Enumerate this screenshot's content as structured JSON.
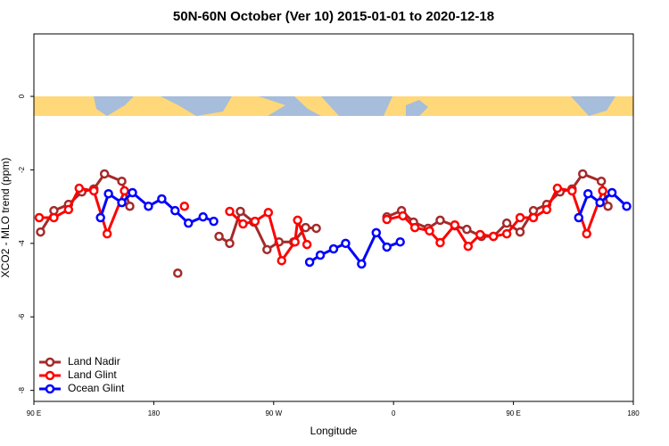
{
  "chart_data": {
    "type": "line",
    "title": "50N-60N October (Ver 10)   2015-01-01 to 2020-12-18",
    "xlabel": "Longitude",
    "ylabel": "XCO2 - MLO trend (ppm)",
    "xlim": [
      90,
      540
    ],
    "ylim": [
      -8.3,
      1.7
    ],
    "xticks": [
      {
        "value": 90,
        "label": "90 E"
      },
      180,
      {
        "value": 270,
        "label": "90 W"
      },
      {
        "value": 360,
        "label": "0"
      },
      {
        "value": 450,
        "label": "90 E"
      },
      {
        "value": 540,
        "label": "180"
      }
    ],
    "yticks": [
      0,
      -2,
      -4,
      -6,
      -8
    ],
    "legend": "bottom-left",
    "series": [
      {
        "name": "Land Nadir",
        "color": "#a52a2a",
        "x": [
          95,
          105,
          116,
          126,
          135,
          143,
          156,
          162,
          null,
          198,
          null,
          229,
          237,
          245,
          255,
          265,
          274,
          285,
          294,
          302,
          null,
          355,
          366,
          375,
          386,
          395,
          406,
          415,
          426,
          435,
          445,
          455,
          465,
          475,
          485,
          494,
          502,
          516,
          521
        ],
        "values": [
          -3.69,
          -3.11,
          -2.94,
          -2.6,
          -2.52,
          -2.11,
          -2.31,
          -2.99,
          null,
          -4.81,
          null,
          -3.81,
          -4.0,
          -3.13,
          -3.42,
          -4.17,
          -3.96,
          -3.96,
          -3.57,
          -3.59,
          null,
          -3.28,
          -3.11,
          -3.42,
          -3.59,
          -3.37,
          -3.52,
          -3.62,
          -3.81,
          -3.81,
          -3.45,
          -3.69,
          -3.11,
          -2.94,
          -2.6,
          -2.52,
          -2.11,
          -2.31,
          -2.99
        ]
      },
      {
        "name": "Land Glint",
        "color": "#ff0000",
        "x": [
          94,
          105,
          116,
          124,
          135,
          145,
          158,
          null,
          203,
          null,
          237,
          247,
          256,
          266,
          276,
          286,
          288,
          295,
          null,
          355,
          367,
          376,
          387,
          395,
          406,
          416,
          425,
          435,
          445,
          455,
          465,
          475,
          483,
          494,
          505,
          517
        ],
        "values": [
          -3.3,
          -3.3,
          -3.08,
          -2.5,
          -2.57,
          -3.74,
          -2.57,
          null,
          -2.99,
          null,
          -3.13,
          -3.47,
          -3.4,
          -3.16,
          -4.47,
          -3.96,
          -3.37,
          -4.03,
          null,
          -3.35,
          -3.25,
          -3.57,
          -3.66,
          -3.98,
          -3.5,
          -4.08,
          -3.76,
          -3.81,
          -3.74,
          -3.3,
          -3.3,
          -3.08,
          -2.5,
          -2.57,
          -3.74,
          -2.57
        ]
      },
      {
        "name": "Ocean Glint",
        "color": "#0000ff",
        "x": [
          140,
          146,
          156,
          164,
          176,
          186,
          196,
          206,
          217,
          225,
          null,
          297,
          305,
          315,
          324,
          336,
          347,
          355,
          365,
          null,
          499,
          506,
          515,
          524,
          535
        ],
        "values": [
          -3.3,
          -2.65,
          -2.89,
          -2.62,
          -2.99,
          -2.79,
          -3.11,
          -3.45,
          -3.28,
          -3.4,
          null,
          -4.51,
          -4.32,
          -4.15,
          -4.0,
          -4.56,
          -3.71,
          -4.1,
          -3.96,
          null,
          -3.3,
          -2.65,
          -2.89,
          -2.62,
          -2.99
        ]
      }
    ]
  }
}
